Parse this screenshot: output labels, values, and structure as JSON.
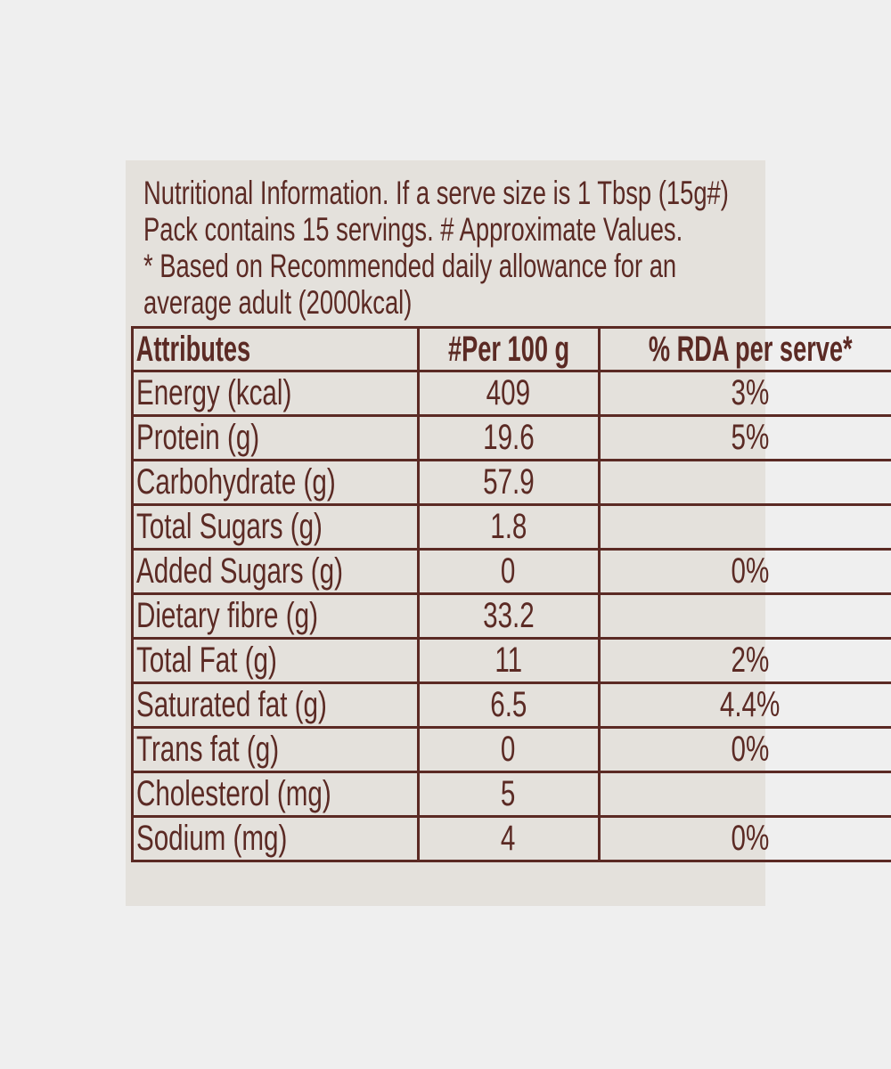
{
  "header": {
    "lines": [
      "Nutritional Information. If a serve size is 1 Tbsp (15g#)",
      "Pack contains 15 servings. # Approximate Values.",
      "* Based on Recommended daily allowance for an",
      "average adult (2000kcal)"
    ]
  },
  "table": {
    "columns": [
      "Attributes",
      "#Per 100 g",
      "% RDA per serve*"
    ],
    "rows": [
      {
        "attribute": "Energy (kcal)",
        "per_100g": "409",
        "rda": "3%"
      },
      {
        "attribute": "Protein (g)",
        "per_100g": "19.6",
        "rda": "5%"
      },
      {
        "attribute": "Carbohydrate (g)",
        "per_100g": "57.9"
      },
      {
        "attribute": "Total Sugars (g)",
        "per_100g": "1.8"
      },
      {
        "attribute": "Added Sugars (g)",
        "per_100g": "0",
        "rda": "0%"
      },
      {
        "attribute": "Dietary fibre (g)",
        "per_100g": "33.2"
      },
      {
        "attribute": "Total Fat (g)",
        "per_100g": "11",
        "rda": "2%"
      },
      {
        "attribute": "Saturated fat (g)",
        "per_100g": "6.5",
        "rda": "4.4%"
      },
      {
        "attribute": "Trans fat (g)",
        "per_100g": "0",
        "rda": "0%"
      },
      {
        "attribute": "Cholesterol (mg)",
        "per_100g": "5"
      },
      {
        "attribute": "Sodium (mg)",
        "per_100g": "4",
        "rda": "0%"
      }
    ]
  }
}
